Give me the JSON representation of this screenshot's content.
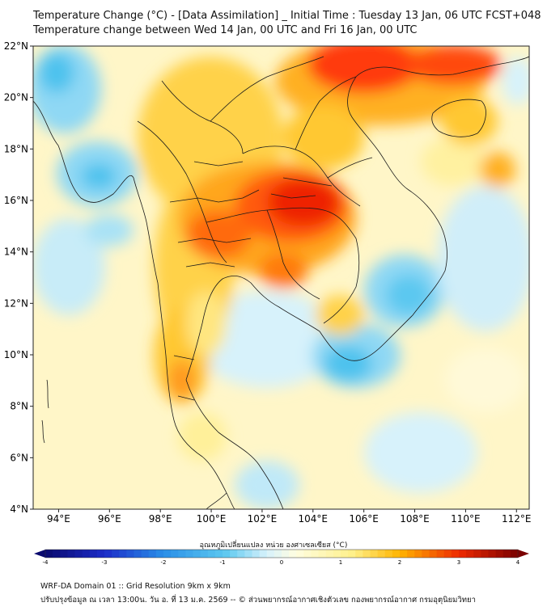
{
  "header": {
    "title_line1": "Temperature Change (°C) - [Data Assimilation] _ Initial Time : Tuesday 13 Jan, 06 UTC FCST+048",
    "title_line2": "Temperature change between Wed 14 Jan, 00 UTC and Fri 16 Jan, 00 UTC"
  },
  "map": {
    "lat_labels": [
      "22°N",
      "20°N",
      "18°N",
      "16°N",
      "14°N",
      "12°N",
      "10°N",
      "8°N",
      "6°N",
      "4°N"
    ],
    "lon_labels": [
      "94°E",
      "96°E",
      "98°E",
      "100°E",
      "102°E",
      "104°E",
      "106°E",
      "108°E",
      "110°E",
      "112°E"
    ],
    "lat_values": [
      22,
      20,
      18,
      16,
      14,
      12,
      10,
      8,
      6,
      4
    ],
    "lon_values": [
      94,
      96,
      98,
      100,
      102,
      104,
      106,
      108,
      110,
      112
    ],
    "lat_range": [
      4,
      22
    ],
    "lon_range": [
      93,
      112.5
    ]
  },
  "colorbar": {
    "label": "อุณหภูมิเปลี่ยนแปลง หน่วย องศาเซลเซียส (°C)",
    "ticks": [
      "-4",
      "-3",
      "-2",
      "-1",
      "0",
      "1",
      "2",
      "3",
      "4"
    ],
    "range": [
      -4,
      4
    ],
    "colors": {
      "m4": "#0a0a6e",
      "m3": "#1c2cc8",
      "m2": "#2a8fe8",
      "m1": "#5cc8f0",
      "m0": "#d8f2fb",
      "p0": "#fffde0",
      "p1": "#fff08a",
      "p2": "#ffb400",
      "p3": "#ee2a00",
      "p4": "#7a0000"
    }
  },
  "footer": {
    "line1": "WRF-DA Domain 01 :: Grid Resolution 9km x 9km",
    "line2": "ปรับปรุงข้อมูล ณ เวลา 13:00น. วัน อ. ที่ 13 ม.ค. 2569 -- © ส่วนพยากรณ์อากาศเชิงตัวเลข กองพยากรณ์อากาศ กรมอุตุนิยมวิทยา"
  }
}
